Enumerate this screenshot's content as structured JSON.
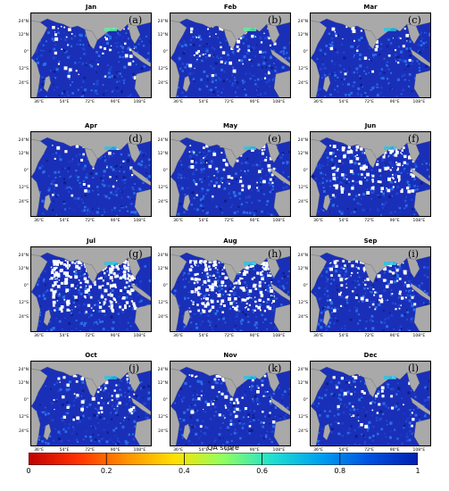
{
  "panels": [
    {
      "month": "Jan",
      "letter": "(a)",
      "white": 0.05
    },
    {
      "month": "Feb",
      "letter": "(b)",
      "white": 0.07
    },
    {
      "month": "Mar",
      "letter": "(c)",
      "white": 0.04
    },
    {
      "month": "Apr",
      "letter": "(d)",
      "white": 0.03
    },
    {
      "month": "May",
      "letter": "(e)",
      "white": 0.08
    },
    {
      "month": "Jun",
      "letter": "(f)",
      "white": 0.18
    },
    {
      "month": "Jul",
      "letter": "(g)",
      "white": 0.32
    },
    {
      "month": "Aug",
      "letter": "(h)",
      "white": 0.3
    },
    {
      "month": "Sep",
      "letter": "(i)",
      "white": 0.14
    },
    {
      "month": "Oct",
      "letter": "(j)",
      "white": 0.08
    },
    {
      "month": "Nov",
      "letter": "(k)",
      "white": 0.08
    },
    {
      "month": "Dec",
      "letter": "(l)",
      "white": 0.05
    }
  ],
  "lat_ticks": [
    "24°N",
    "12°N",
    "0°",
    "12°S",
    "24°S"
  ],
  "lon_ticks": [
    "36°E",
    "54°E",
    "72°E",
    "90°E",
    "108°E"
  ],
  "colorbar": {
    "title": "QA score",
    "ticks": [
      "0",
      "0.2",
      "0.4",
      "0.6",
      "0.8",
      "1"
    ],
    "colors": [
      "#c00000",
      "#ff3000",
      "#ff9000",
      "#ffe000",
      "#90ff60",
      "#20e0d0",
      "#00a0f0",
      "#0050e0",
      "#0020b0"
    ]
  },
  "colors": {
    "land": "#a9a9a9",
    "ocean_high": "#1a2fb8",
    "ocean_mid": "#2a6ee8",
    "missing": "#ffffff"
  }
}
